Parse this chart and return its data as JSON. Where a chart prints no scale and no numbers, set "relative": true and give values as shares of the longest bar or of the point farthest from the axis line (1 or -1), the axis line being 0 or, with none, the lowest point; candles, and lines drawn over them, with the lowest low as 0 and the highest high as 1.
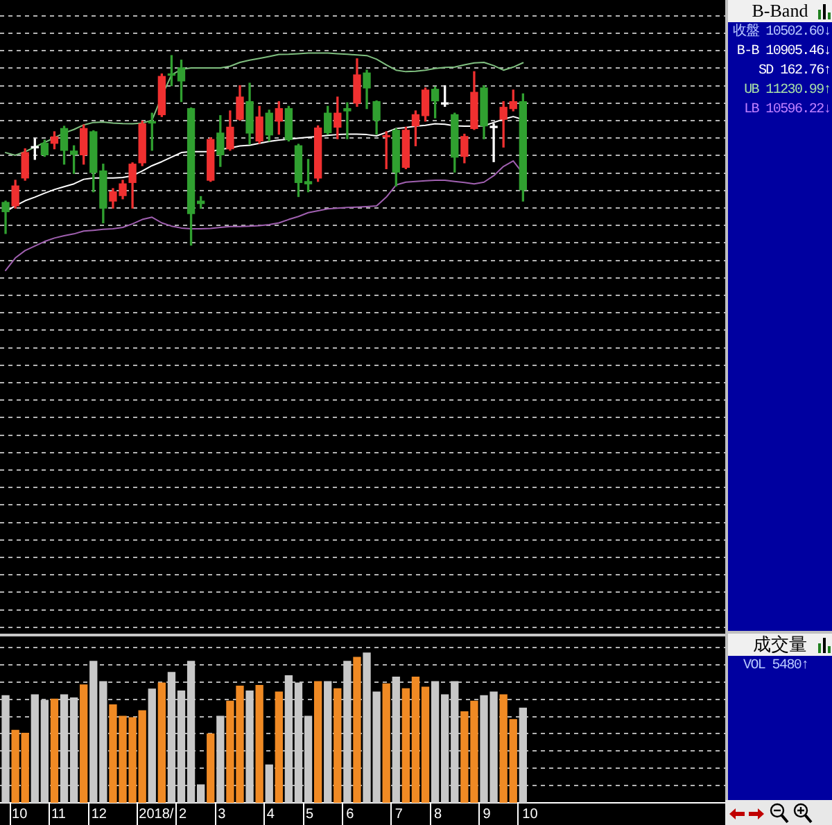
{
  "chart_data": [
    {
      "type": "candlestick",
      "relative": true,
      "x": [
        "2017-09-29",
        "2017-10-06",
        "2017-10-13",
        "2017-10-20",
        "2017-10-27",
        "2017-11-03",
        "2017-11-10",
        "2017-11-17",
        "2017-11-24",
        "2017-12-01",
        "2017-12-08",
        "2017-12-15",
        "2017-12-22",
        "2017-12-29",
        "2018-01-05",
        "2018-01-12",
        "2018-01-19",
        "2018-01-26",
        "2018-02-02",
        "2018-02-09",
        "2018-02-16",
        "2018-02-23",
        "2018-03-02",
        "2018-03-09",
        "2018-03-16",
        "2018-03-23",
        "2018-03-30",
        "2018-04-06",
        "2018-04-13",
        "2018-04-20",
        "2018-04-27",
        "2018-05-04",
        "2018-05-11",
        "2018-05-18",
        "2018-05-25",
        "2018-06-01",
        "2018-06-08",
        "2018-06-15",
        "2018-06-22",
        "2018-06-29",
        "2018-07-06",
        "2018-07-13",
        "2018-07-20",
        "2018-07-27",
        "2018-08-03",
        "2018-08-10",
        "2018-08-17",
        "2018-08-24",
        "2018-08-31",
        "2018-09-07",
        "2018-09-14",
        "2018-09-21",
        "2018-09-28",
        "2018-10-05"
      ],
      "xlim": [
        "2017-09-25",
        "2019-02-27"
      ],
      "grid": "y",
      "tick_labels": false,
      "ohlc": [
        [
          0.225,
          0.232,
          0.061,
          0.176
        ],
        [
          0.207,
          0.342,
          0.195,
          0.312
        ],
        [
          0.354,
          0.508,
          0.342,
          0.488
        ],
        [
          0.52,
          0.561,
          0.452,
          0.52
        ],
        [
          0.537,
          0.554,
          0.468,
          0.476
        ],
        [
          0.537,
          0.598,
          0.508,
          0.571
        ],
        [
          0.615,
          0.627,
          0.427,
          0.5
        ],
        [
          0.496,
          0.524,
          0.378,
          0.478
        ],
        [
          0.476,
          0.634,
          0.427,
          0.615
        ],
        [
          0.598,
          0.603,
          0.281,
          0.383
        ],
        [
          0.391,
          0.427,
          0.117,
          0.195
        ],
        [
          0.232,
          0.298,
          0.195,
          0.281
        ],
        [
          0.261,
          0.342,
          0.244,
          0.323
        ],
        [
          0.33,
          0.434,
          0.195,
          0.427
        ],
        [
          0.434,
          0.654,
          0.419,
          0.64
        ],
        [
          0.652,
          0.696,
          0.5,
          0.644
        ],
        [
          0.688,
          0.903,
          0.678,
          0.89
        ],
        [
          0.903,
          1,
          0.841,
          0.896
        ],
        [
          0.935,
          0.976,
          0.757,
          0.866
        ],
        [
          0.72,
          0.724,
          0,
          0.166
        ],
        [
          0.232,
          0.256,
          0.195,
          0.219
        ],
        [
          0.342,
          0.566,
          0.336,
          0.557
        ],
        [
          0.591,
          0.683,
          0.415,
          0.476
        ],
        [
          0.508,
          0.708,
          0.5,
          0.622
        ],
        [
          0.664,
          0.841,
          0.659,
          0.781
        ],
        [
          0.757,
          0.854,
          0.532,
          0.591
        ],
        [
          0.549,
          0.732,
          0.537,
          0.676
        ],
        [
          0.696,
          0.712,
          0.549,
          0.581
        ],
        [
          0.654,
          0.757,
          0.585,
          0.72
        ],
        [
          0.72,
          0.732,
          0.549,
          0.557
        ],
        [
          0.524,
          0.532,
          0.256,
          0.33
        ],
        [
          0.335,
          0.452,
          0.281,
          0.323
        ],
        [
          0.354,
          0.629,
          0.336,
          0.618
        ],
        [
          0.696,
          0.732,
          0.585,
          0.593
        ],
        [
          0.622,
          0.781,
          0.561,
          0.696
        ],
        [
          0.72,
          0.751,
          0.561,
          0.708
        ],
        [
          0.749,
          0.983,
          0.732,
          0.898
        ],
        [
          0.908,
          0.923,
          0.72,
          0.829
        ],
        [
          0.757,
          0.761,
          0.585,
          0.659
        ],
        [
          0.571,
          0.598,
          0.403,
          0.576
        ],
        [
          0.606,
          0.615,
          0.312,
          0.385
        ],
        [
          0.41,
          0.622,
          0.403,
          0.606
        ],
        [
          0.629,
          0.708,
          0.524,
          0.688
        ],
        [
          0.683,
          0.829,
          0.654,
          0.818
        ],
        [
          0.822,
          0.834,
          0.671,
          0.761
        ],
        [
          0.751,
          0.841,
          0.732,
          0.751
        ],
        [
          0.688,
          0.696,
          0.385,
          0.464
        ],
        [
          0.468,
          0.585,
          0.434,
          0.573
        ],
        [
          0.615,
          0.915,
          0.61,
          0.806
        ],
        [
          0.829,
          0.841,
          0.561,
          0.629
        ],
        [
          0.627,
          0.64,
          0.44,
          0.627
        ],
        [
          0.664,
          0.757,
          0.517,
          0.727
        ],
        [
          0.72,
          0.818,
          0.708,
          0.757
        ],
        [
          0.757,
          0.798,
          0.232,
          0.291
        ]
      ],
      "colors": [
        "#30a030",
        "#f03030",
        "#f03030",
        "#ffffff",
        "#30a030",
        "#f03030",
        "#30a030",
        "#30a030",
        "#f03030",
        "#30a030",
        "#30a030",
        "#f03030",
        "#f03030",
        "#f03030",
        "#f03030",
        "#30a030",
        "#f03030",
        "#30a030",
        "#30a030",
        "#30a030",
        "#30a030",
        "#f03030",
        "#30a030",
        "#f03030",
        "#f03030",
        "#30a030",
        "#f03030",
        "#30a030",
        "#f03030",
        "#30a030",
        "#30a030",
        "#30a030",
        "#f03030",
        "#30a030",
        "#f03030",
        "#30a030",
        "#f03030",
        "#30a030",
        "#30a030",
        "#f03030",
        "#30a030",
        "#f03030",
        "#f03030",
        "#f03030",
        "#30a030",
        "#ffffff",
        "#30a030",
        "#f03030",
        "#f03030",
        "#30a030",
        "#ffffff",
        "#f03030",
        "#f03030",
        "#30a030"
      ],
      "series": [
        {
          "type": "line",
          "color": "#80c080",
          "values": [
            0.488,
            0.474,
            0.493,
            0.517,
            0.542,
            0.566,
            0.591,
            0.61,
            0.634,
            0.647,
            0.649,
            0.644,
            0.641,
            0.64,
            0.644,
            0.659,
            0.785,
            0.898,
            0.927,
            0.935,
            0.935,
            0.935,
            0.935,
            0.944,
            0.964,
            0.976,
            0.985,
            0.995,
            1.006,
            1.007,
            1.01,
            1.013,
            1.013,
            1.013,
            1.01,
            1.007,
            1.003,
            1.0,
            0.981,
            0.951,
            0.923,
            0.915,
            0.917,
            0.923,
            0.932,
            0.937,
            0.939,
            0.951,
            0.961,
            0.964,
            0.947,
            0.923,
            0.939,
            0.962
          ]
        },
        {
          "type": "line",
          "color": "#ffffff",
          "values": [
            0.176,
            0.207,
            0.234,
            0.253,
            0.274,
            0.293,
            0.308,
            0.323,
            0.347,
            0.354,
            0.354,
            0.354,
            0.357,
            0.366,
            0.391,
            0.419,
            0.44,
            0.464,
            0.488,
            0.493,
            0.493,
            0.493,
            0.505,
            0.512,
            0.523,
            0.527,
            0.537,
            0.547,
            0.554,
            0.559,
            0.564,
            0.569,
            0.573,
            0.579,
            0.583,
            0.585,
            0.585,
            0.583,
            0.576,
            0.595,
            0.615,
            0.62,
            0.627,
            0.632,
            0.64,
            0.637,
            0.629,
            0.627,
            0.627,
            0.629,
            0.647,
            0.664,
            0.678,
            0.662
          ]
        },
        {
          "type": "line",
          "color": "#a060b0",
          "values": [
            -0.134,
            -0.068,
            -0.029,
            -0.005,
            0.019,
            0.037,
            0.049,
            0.059,
            0.074,
            0.078,
            0.083,
            0.086,
            0.093,
            0.112,
            0.135,
            0.147,
            0.117,
            0.1,
            0.09,
            0.086,
            0.086,
            0.088,
            0.093,
            0.098,
            0.098,
            0.1,
            0.102,
            0.108,
            0.117,
            0.135,
            0.151,
            0.171,
            0.181,
            0.191,
            0.195,
            0.198,
            0.2,
            0.203,
            0.207,
            0.253,
            0.317,
            0.332,
            0.336,
            0.339,
            0.342,
            0.342,
            0.336,
            0.33,
            0.323,
            0.332,
            0.366,
            0.415,
            0.444,
            0.377
          ]
        }
      ]
    },
    {
      "type": "bar",
      "relative": true,
      "x": [
        "2017-09-29",
        "2017-10-06",
        "2017-10-13",
        "2017-10-20",
        "2017-10-27",
        "2017-11-03",
        "2017-11-10",
        "2017-11-17",
        "2017-11-24",
        "2017-12-01",
        "2017-12-08",
        "2017-12-15",
        "2017-12-22",
        "2017-12-29",
        "2018-01-05",
        "2018-01-12",
        "2018-01-19",
        "2018-01-26",
        "2018-02-02",
        "2018-02-09",
        "2018-02-16",
        "2018-02-23",
        "2018-03-02",
        "2018-03-09",
        "2018-03-16",
        "2018-03-23",
        "2018-03-30",
        "2018-04-06",
        "2018-04-13",
        "2018-04-20",
        "2018-04-27",
        "2018-05-04",
        "2018-05-11",
        "2018-05-18",
        "2018-05-25",
        "2018-06-01",
        "2018-06-08",
        "2018-06-15",
        "2018-06-22",
        "2018-06-29",
        "2018-07-06",
        "2018-07-13",
        "2018-07-20",
        "2018-07-27",
        "2018-08-03",
        "2018-08-10",
        "2018-08-17",
        "2018-08-24",
        "2018-08-31",
        "2018-09-07",
        "2018-09-14",
        "2018-09-21",
        "2018-09-28",
        "2018-10-05"
      ],
      "xlim": [
        "2017-09-25",
        "2019-02-27"
      ],
      "xticks": [
        {
          "value": "2017-10-02T12:00",
          "label": null
        },
        {
          "value": "2017-10-09",
          "label": "10"
        },
        {
          "value": "2017-10-30T12:00",
          "label": null
        },
        {
          "value": "2017-11-06",
          "label": "11"
        },
        {
          "value": "2017-11-27T12:00",
          "label": null
        },
        {
          "value": "2017-12-05",
          "label": "12"
        },
        {
          "value": "2018-01-01T12:00",
          "label": null
        },
        {
          "value": "2018-01-15",
          "label": "2018/"
        },
        {
          "value": "2018-01-29T12:00",
          "label": null
        },
        {
          "value": "2018-02-03",
          "label": "2"
        },
        {
          "value": "2018-02-26T12:00",
          "label": null
        },
        {
          "value": "2018-03-03",
          "label": "3"
        },
        {
          "value": "2018-04-02T12:00",
          "label": null
        },
        {
          "value": "2018-04-07",
          "label": "4"
        },
        {
          "value": "2018-04-30T12:00",
          "label": null
        },
        {
          "value": "2018-05-05",
          "label": "5"
        },
        {
          "value": "2018-05-28T12:00",
          "label": null
        },
        {
          "value": "2018-06-03",
          "label": "6"
        },
        {
          "value": "2018-07-02T12:00",
          "label": null
        },
        {
          "value": "2018-07-08",
          "label": "7"
        },
        {
          "value": "2018-07-30T12:00",
          "label": null
        },
        {
          "value": "2018-08-05",
          "label": "8"
        },
        {
          "value": "2018-09-03T12:00",
          "label": null
        },
        {
          "value": "2018-09-09",
          "label": "9"
        },
        {
          "value": "2018-10-01T12:00",
          "label": null
        },
        {
          "value": "2018-10-10",
          "label": "10"
        }
      ],
      "grid": "y",
      "tick_labels": "x",
      "values": [
        0.716,
        0.484,
        0.464,
        0.722,
        0.685,
        0.692,
        0.722,
        0.701,
        0.788,
        0.945,
        0.809,
        0.654,
        0.578,
        0.569,
        0.615,
        0.76,
        0.8,
        0.871,
        0.747,
        0.945,
        0.12,
        0.46,
        0.578,
        0.679,
        0.779,
        0.747,
        0.784,
        0.253,
        0.74,
        0.849,
        0.8,
        0.578,
        0.809,
        0.809,
        0.762,
        0.945,
        0.972,
        1,
        0.74,
        0.794,
        0.84,
        0.762,
        0.84,
        0.772,
        0.809,
        0.722,
        0.809,
        0.608,
        0.679,
        0.716,
        0.74,
        0.722,
        0.556,
        0.632
      ],
      "colors": [
        "#c8c8c8",
        "#f08a24",
        "#f08a24",
        "#c8c8c8",
        "#c8c8c8",
        "#f08a24",
        "#c8c8c8",
        "#c8c8c8",
        "#f08a24",
        "#c8c8c8",
        "#c8c8c8",
        "#f08a24",
        "#f08a24",
        "#f08a24",
        "#f08a24",
        "#c8c8c8",
        "#f08a24",
        "#c8c8c8",
        "#c8c8c8",
        "#c8c8c8",
        "#c8c8c8",
        "#f08a24",
        "#c8c8c8",
        "#f08a24",
        "#f08a24",
        "#c8c8c8",
        "#f08a24",
        "#c8c8c8",
        "#f08a24",
        "#c8c8c8",
        "#c8c8c8",
        "#c8c8c8",
        "#f08a24",
        "#c8c8c8",
        "#f08a24",
        "#c8c8c8",
        "#f08a24",
        "#c8c8c8",
        "#c8c8c8",
        "#f08a24",
        "#c8c8c8",
        "#f08a24",
        "#f08a24",
        "#f08a24",
        "#c8c8c8",
        "#c8c8c8",
        "#c8c8c8",
        "#f08a24",
        "#f08a24",
        "#c8c8c8",
        "#c8c8c8",
        "#f08a24",
        "#f08a24",
        "#c8c8c8"
      ]
    },
    {
      "type": "other",
      "title": "B-Band",
      "annotations": [
        "收盤 10502.60↓",
        "B-B 10905.46↓",
        "SD 162.76↑",
        "UB 11230.99↑",
        "LB 10596.22↓"
      ],
      "colors": [
        "#b8c8ff",
        "#ffffff",
        "#ffffff",
        "#a8e0a8",
        "#c080ff"
      ]
    },
    {
      "type": "other",
      "title": "成交量",
      "annotations": [
        "VOL 5480↑"
      ],
      "colors": [
        "#b8c8ff"
      ]
    }
  ]
}
